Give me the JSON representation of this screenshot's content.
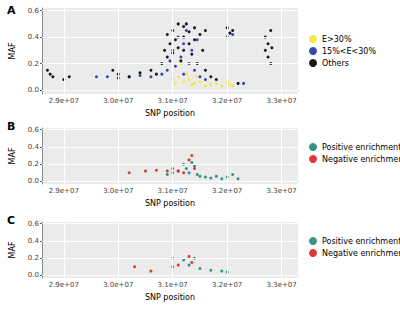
{
  "chart_data": [
    {
      "type": "scatter",
      "title": "A",
      "x_label": "SNP position",
      "y_label": "MAF",
      "xlim": [
        28600000,
        33300000
      ],
      "xticks": [
        {
          "value": 29000000,
          "label": "2.9e+07"
        },
        {
          "value": 30000000,
          "label": "3.0e+07"
        },
        {
          "value": 31000000,
          "label": "3.1e+07"
        },
        {
          "value": 32000000,
          "label": "3.2e+07"
        },
        {
          "value": 33000000,
          "label": "3.3e+07"
        }
      ],
      "ylim": [
        -0.03,
        0.62
      ],
      "yticks": [
        {
          "value": 0,
          "label": "0.0"
        },
        0.2,
        0.4,
        0.6
      ],
      "grid": true,
      "legend": "right",
      "series": [
        {
          "name": "E>30%",
          "color": "#f2e830",
          "x": [
            31000000,
            31050000,
            31100000,
            31150000,
            31200000,
            31250000,
            31300000,
            31350000,
            31400000,
            31450000,
            31500000,
            31600000,
            31700000,
            31800000,
            31900000,
            32000000,
            32050000,
            32100000
          ],
          "values": [
            0.08,
            0.05,
            0.1,
            0.2,
            0.06,
            0.12,
            0.08,
            0.04,
            0.05,
            0.1,
            0.06,
            0.03,
            0.04,
            0.05,
            0.03,
            0.06,
            0.04,
            0.03
          ]
        },
        {
          "name": "15%<E<30%",
          "color": "#2233aa",
          "x": [
            29600000,
            29800000,
            30000000,
            30200000,
            30400000,
            30600000,
            30800000,
            30900000,
            30950000,
            31000000,
            31050000,
            31100000,
            31150000,
            31200000,
            31200000,
            31250000,
            31300000,
            31350000,
            31400000,
            31450000,
            31500000,
            31600000,
            32000000,
            32100000,
            32300000
          ],
          "values": [
            0.1,
            0.1,
            0.09,
            0.1,
            0.11,
            0.1,
            0.12,
            0.15,
            0.22,
            0.3,
            0.18,
            0.4,
            0.25,
            0.35,
            0.12,
            0.45,
            0.2,
            0.3,
            0.15,
            0.38,
            0.1,
            0.08,
            0.4,
            0.42,
            0.05
          ]
        },
        {
          "name": "Others",
          "color": "#000000",
          "x": [
            28700000,
            28750000,
            28800000,
            29000000,
            29100000,
            29900000,
            30000000,
            30200000,
            30400000,
            30600000,
            30700000,
            30800000,
            30850000,
            30900000,
            30900000,
            30950000,
            31000000,
            31000000,
            31050000,
            31100000,
            31100000,
            31150000,
            31200000,
            31200000,
            31200000,
            31250000,
            31300000,
            31300000,
            31350000,
            31400000,
            31400000,
            31450000,
            31500000,
            31550000,
            31600000,
            31600000,
            31700000,
            31800000,
            32000000,
            32050000,
            32100000,
            32200000,
            32700000,
            32700000,
            32750000,
            32750000,
            32800000,
            32800000,
            32820000
          ],
          "values": [
            0.15,
            0.12,
            0.1,
            0.08,
            0.1,
            0.15,
            0.12,
            0.1,
            0.13,
            0.15,
            0.12,
            0.2,
            0.3,
            0.25,
            0.42,
            0.35,
            0.28,
            0.45,
            0.38,
            0.5,
            0.32,
            0.22,
            0.48,
            0.4,
            0.3,
            0.5,
            0.44,
            0.35,
            0.27,
            0.47,
            0.38,
            0.2,
            0.42,
            0.3,
            0.45,
            0.15,
            0.1,
            0.08,
            0.47,
            0.43,
            0.45,
            0.05,
            0.3,
            0.4,
            0.35,
            0.25,
            0.45,
            0.2,
            0.32
          ]
        }
      ]
    },
    {
      "type": "scatter",
      "title": "B",
      "x_label": "SNP position",
      "y_label": "MAF",
      "xlim": [
        28600000,
        33300000
      ],
      "xticks": [
        {
          "value": 29000000,
          "label": "2.9e+07"
        },
        {
          "value": 30000000,
          "label": "3.0e+07"
        },
        {
          "value": 31000000,
          "label": "3.1e+07"
        },
        {
          "value": 32000000,
          "label": "3.2e+07"
        },
        {
          "value": 33000000,
          "label": "3.3e+07"
        }
      ],
      "ylim": [
        -0.03,
        0.62
      ],
      "yticks": [
        {
          "value": 0,
          "label": "0.0"
        },
        0.2,
        0.4,
        0.6
      ],
      "grid": true,
      "legend": "right",
      "series": [
        {
          "name": "Positive enrichment",
          "color": "#1f8a78",
          "x": [
            30900000,
            31000000,
            31100000,
            31200000,
            31250000,
            31300000,
            31350000,
            31400000,
            31450000,
            31500000,
            31600000,
            31700000,
            31800000,
            31900000,
            32000000,
            32100000,
            32200000
          ],
          "values": [
            0.08,
            0.1,
            0.12,
            0.2,
            0.15,
            0.1,
            0.22,
            0.18,
            0.08,
            0.06,
            0.05,
            0.04,
            0.06,
            0.03,
            0.05,
            0.08,
            0.03
          ]
        },
        {
          "name": "Negative enrichment",
          "color": "#e02020",
          "x": [
            30200000,
            30500000,
            30700000,
            30900000,
            31000000,
            31100000,
            31200000,
            31300000,
            31350000,
            31400000
          ],
          "values": [
            0.1,
            0.12,
            0.13,
            0.12,
            0.15,
            0.12,
            0.1,
            0.25,
            0.3,
            0.15
          ]
        }
      ]
    },
    {
      "type": "scatter",
      "title": "C",
      "x_label": "SNP position",
      "y_label": "MAF",
      "xlim": [
        28600000,
        33300000
      ],
      "xticks": [
        {
          "value": 29000000,
          "label": "2.9e+07"
        },
        {
          "value": 30000000,
          "label": "3.0e+07"
        },
        {
          "value": 31000000,
          "label": "3.1e+07"
        },
        {
          "value": 32000000,
          "label": "3.2e+07"
        },
        {
          "value": 33000000,
          "label": "3.3e+07"
        }
      ],
      "ylim": [
        -0.03,
        0.62
      ],
      "yticks": [
        {
          "value": 0,
          "label": "0.0"
        },
        0.2,
        0.4,
        0.6
      ],
      "grid": true,
      "legend": "right",
      "series": [
        {
          "name": "Positive enrichment",
          "color": "#1f8a78",
          "x": [
            31000000,
            31200000,
            31300000,
            31400000,
            31500000,
            31700000,
            31900000,
            32000000
          ],
          "values": [
            0.1,
            0.18,
            0.12,
            0.2,
            0.08,
            0.06,
            0.05,
            0.04
          ]
        },
        {
          "name": "Negative enrichment",
          "color": "#e02020",
          "x": [
            30300000,
            30600000,
            31000000,
            31100000,
            31300000,
            31350000
          ],
          "values": [
            0.1,
            0.05,
            0.2,
            0.12,
            0.22,
            0.15
          ]
        }
      ]
    }
  ]
}
